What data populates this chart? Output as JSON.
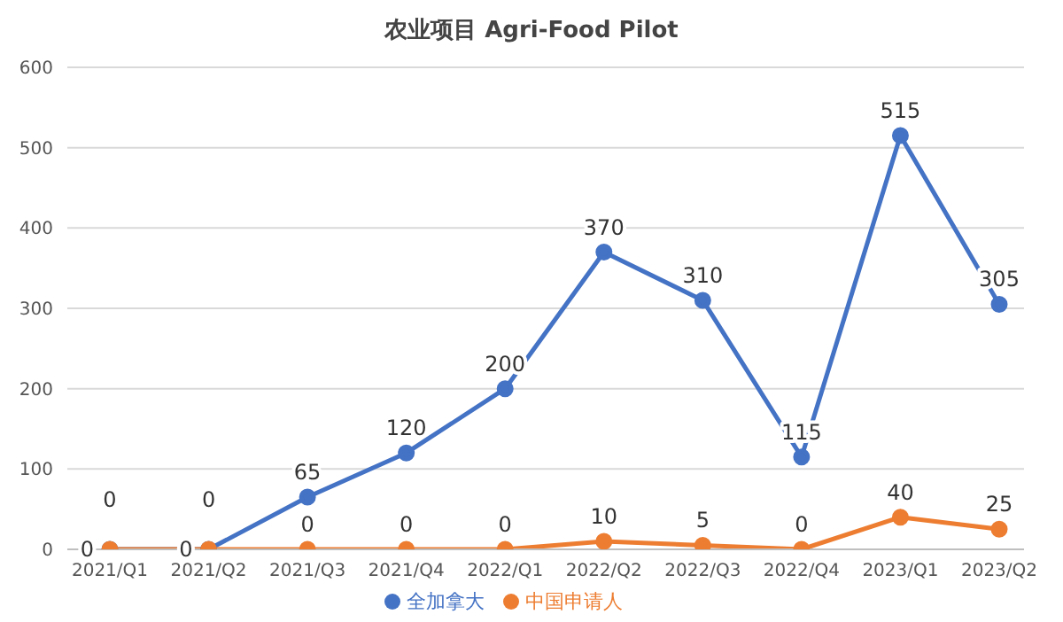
{
  "chart_data": {
    "type": "line",
    "title": "农业项目 Agri-Food Pilot",
    "categories": [
      "2021/Q1",
      "2021/Q2",
      "2021/Q3",
      "2021/Q4",
      "2022/Q1",
      "2022/Q2",
      "2022/Q3",
      "2022/Q4",
      "2023/Q1",
      "2023/Q2"
    ],
    "series": [
      {
        "name": "全加拿大",
        "color": "#4472c4",
        "values": [
          0,
          0,
          65,
          120,
          200,
          370,
          310,
          115,
          515,
          305
        ]
      },
      {
        "name": "中国申请人",
        "color": "#ed7d31",
        "values": [
          0,
          0,
          0,
          0,
          0,
          10,
          5,
          0,
          40,
          25
        ]
      }
    ],
    "ylim": [
      0,
      600
    ],
    "yticks": [
      0,
      100,
      200,
      300,
      400,
      500,
      600
    ],
    "grid": "y",
    "legend": "bottom",
    "marker": "circle",
    "line_style": "solid",
    "data_labels": true
  }
}
